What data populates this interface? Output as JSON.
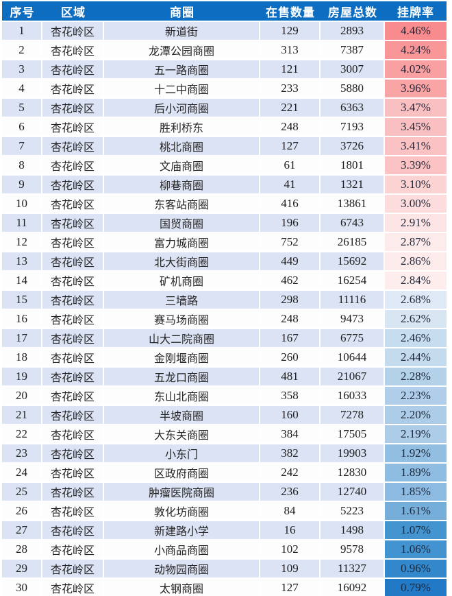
{
  "chart_data": {
    "type": "table",
    "title": "",
    "columns": [
      "序号",
      "区域",
      "商圈",
      "在售数量",
      "房屋总数",
      "挂牌率"
    ],
    "rows": [
      [
        "1",
        "杏花岭区",
        "新道街",
        "129",
        "2893",
        "4.46%"
      ],
      [
        "2",
        "杏花岭区",
        "龙潭公园商圈",
        "313",
        "7387",
        "4.24%"
      ],
      [
        "3",
        "杏花岭区",
        "五一路商圈",
        "121",
        "3007",
        "4.02%"
      ],
      [
        "4",
        "杏花岭区",
        "十二中商圈",
        "233",
        "5880",
        "3.96%"
      ],
      [
        "5",
        "杏花岭区",
        "后小河商圈",
        "221",
        "6363",
        "3.47%"
      ],
      [
        "6",
        "杏花岭区",
        "胜利桥东",
        "248",
        "7193",
        "3.45%"
      ],
      [
        "7",
        "杏花岭区",
        "桃北商圈",
        "127",
        "3726",
        "3.41%"
      ],
      [
        "8",
        "杏花岭区",
        "文庙商圈",
        "61",
        "1801",
        "3.39%"
      ],
      [
        "9",
        "杏花岭区",
        "柳巷商圈",
        "41",
        "1321",
        "3.10%"
      ],
      [
        "10",
        "杏花岭区",
        "东客站商圈",
        "416",
        "13861",
        "3.00%"
      ],
      [
        "11",
        "杏花岭区",
        "国贸商圈",
        "196",
        "6743",
        "2.91%"
      ],
      [
        "12",
        "杏花岭区",
        "富力城商圈",
        "752",
        "26185",
        "2.87%"
      ],
      [
        "13",
        "杏花岭区",
        "北大街商圈",
        "449",
        "15692",
        "2.86%"
      ],
      [
        "14",
        "杏花岭区",
        "矿机商圈",
        "462",
        "16254",
        "2.84%"
      ],
      [
        "15",
        "杏花岭区",
        "三墙路",
        "298",
        "11116",
        "2.68%"
      ],
      [
        "16",
        "杏花岭区",
        "赛马场商圈",
        "248",
        "9473",
        "2.62%"
      ],
      [
        "17",
        "杏花岭区",
        "山大二院商圈",
        "167",
        "6775",
        "2.46%"
      ],
      [
        "18",
        "杏花岭区",
        "金刚堰商圈",
        "260",
        "10644",
        "2.44%"
      ],
      [
        "19",
        "杏花岭区",
        "五龙口商圈",
        "481",
        "21067",
        "2.28%"
      ],
      [
        "20",
        "杏花岭区",
        "东山北商圈",
        "358",
        "16033",
        "2.23%"
      ],
      [
        "21",
        "杏花岭区",
        "半坡商圈",
        "160",
        "7278",
        "2.20%"
      ],
      [
        "22",
        "杏花岭区",
        "大东关商圈",
        "384",
        "17505",
        "2.19%"
      ],
      [
        "23",
        "杏花岭区",
        "小东门",
        "382",
        "19903",
        "1.92%"
      ],
      [
        "24",
        "杏花岭区",
        "区政府商圈",
        "242",
        "12830",
        "1.89%"
      ],
      [
        "25",
        "杏花岭区",
        "肿瘤医院商圈",
        "236",
        "12740",
        "1.85%"
      ],
      [
        "26",
        "杏花岭区",
        "敦化坊商圈",
        "84",
        "5223",
        "1.61%"
      ],
      [
        "27",
        "杏花岭区",
        "新建路小学",
        "16",
        "1498",
        "1.07%"
      ],
      [
        "28",
        "杏花岭区",
        "小商品商圈",
        "102",
        "9578",
        "1.06%"
      ],
      [
        "29",
        "杏花岭区",
        "动物园商圈",
        "109",
        "11327",
        "0.96%"
      ],
      [
        "30",
        "杏花岭区",
        "太钢商圈",
        "127",
        "16092",
        "0.79%"
      ]
    ],
    "layout_hints": {
      "rate_column_color_scale": "red-white-blue, high rate = red, low rate = blue",
      "row_striping": "odd rows light periwinkle, even rows white"
    }
  },
  "styles": {
    "header_bg": "#0d6dc1",
    "header_text": "#ffffff",
    "stripe_bg": "#dce3f4",
    "plain_bg": "#fdfdfe",
    "gridline": "#ffffff",
    "rate_cell_colors": [
      "#f78b8d",
      "#f89698",
      "#f9a1a2",
      "#f9a4a5",
      "#fabfc0",
      "#fac0c1",
      "#fac2c3",
      "#fbc3c4",
      "#fbd3d3",
      "#fcdcdc",
      "#fde5e5",
      "#fdeaea",
      "#fdebeb",
      "#fdedec",
      "#dfe9f5",
      "#d8e5f3",
      "#c6dcef",
      "#c4dbee",
      "#b4d1ea",
      "#b0cee9",
      "#adcce8",
      "#accce8",
      "#92bee2",
      "#8fbce1",
      "#8cbae0",
      "#76aeda",
      "#4494d0",
      "#4393d0",
      "#3388cb",
      "#2279c6"
    ]
  }
}
